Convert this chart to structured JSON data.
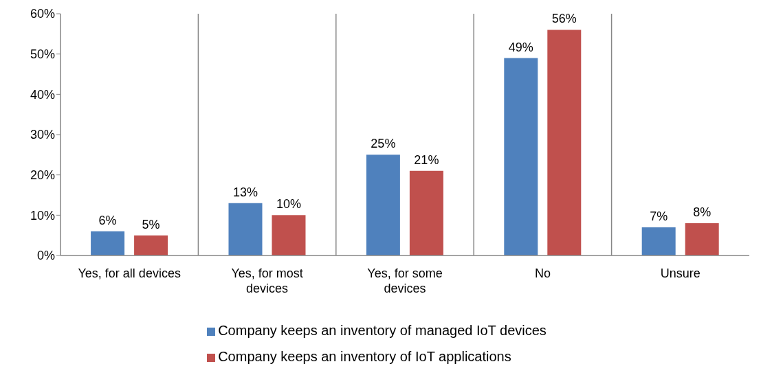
{
  "chart_data": {
    "type": "bar",
    "categories": [
      "Yes, for all devices",
      "Yes, for most devices",
      "Yes, for some devices",
      "No",
      "Unsure"
    ],
    "series": [
      {
        "name": "Company keeps an inventory of managed IoT devices",
        "color": "#4f81bd",
        "values": [
          6,
          13,
          25,
          49,
          7
        ],
        "value_labels": [
          "6%",
          "13%",
          "25%",
          "49%",
          "7%"
        ]
      },
      {
        "name": "Company keeps an inventory of IoT applications",
        "color": "#c0504d",
        "values": [
          5,
          10,
          21,
          56,
          8
        ],
        "value_labels": [
          "5%",
          "10%",
          "21%",
          "56%",
          "8%"
        ]
      }
    ],
    "ylim": [
      0,
      60
    ],
    "yticks": [
      {
        "value": 0,
        "label": "0%"
      },
      {
        "value": 10,
        "label": "10%"
      },
      {
        "value": 20,
        "label": "20%"
      },
      {
        "value": 30,
        "label": "30%"
      },
      {
        "value": 40,
        "label": "40%"
      },
      {
        "value": 50,
        "label": "50%"
      },
      {
        "value": 60,
        "label": "60%"
      }
    ],
    "grid": "x",
    "legend": "bottom"
  }
}
